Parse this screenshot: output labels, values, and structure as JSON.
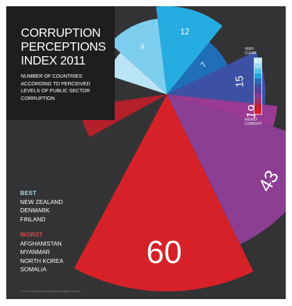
{
  "title": "CORRUPTION PERCEPTIONS INDEX 2011",
  "title_lines": [
    "CORRUPTION",
    "PERCEPTIONS",
    "INDEX 2011"
  ],
  "subtitle_lines": [
    "NUMBER OF COUNTRIES",
    "ACCORDING TO PERCEIVED",
    "LEVELS OF PUBLIC SECTOR",
    "CORRUPTION"
  ],
  "legend": {
    "top_lines": [
      "VERY",
      "CLEAN"
    ],
    "bottom_lines": [
      "HIGHLY",
      "CORRUPT"
    ],
    "colors": [
      "#c9ecf8",
      "#9bdcf2",
      "#58c3ea",
      "#20a7df",
      "#2c6cb5",
      "#3e4fa2",
      "#5a3e98",
      "#823e95",
      "#a12f6a",
      "#bf1d32",
      "#d41f25"
    ]
  },
  "best": {
    "heading": "BEST",
    "color": "#a8d8ef",
    "countries": [
      "NEW ZEALAND",
      "DENMARK",
      "FINLAND"
    ]
  },
  "worst": {
    "heading": "WORST",
    "color": "#e34b4b",
    "countries": [
      "AFGHANISTAN",
      "MYANMAR",
      "NORTH KOREA",
      "SOMALIA"
    ]
  },
  "copyright": "© 2011 Transparency International. All rights reserved.",
  "chart_data": {
    "type": "pie",
    "title": "CORRUPTION PERCEPTIONS INDEX 2011",
    "subtitle": "NUMBER OF COUNTRIES ACCORDING TO PERCEIVED LEVELS OF PUBLIC SECTOR CORRUPTION",
    "variant": "polar-area",
    "slices": [
      {
        "value": 60,
        "label": "60",
        "color": "#d52127"
      },
      {
        "value": 43,
        "label": "43",
        "color": "#8c3e93"
      },
      {
        "value": 19,
        "label": "19",
        "color": "#9b3a93"
      },
      {
        "value": 15,
        "label": "15",
        "color": "#3d51a4"
      },
      {
        "value": 7,
        "label": "7",
        "color": "#1f6fb8"
      },
      {
        "value": 12,
        "label": "12",
        "color": "#25ace0"
      },
      {
        "value": 9,
        "label": "9",
        "color": "#7dcdee"
      },
      {
        "value": 6,
        "label": "",
        "color": "#b9e4f6"
      },
      {
        "value": 12,
        "label": "12",
        "color": "#b3202a"
      }
    ]
  }
}
